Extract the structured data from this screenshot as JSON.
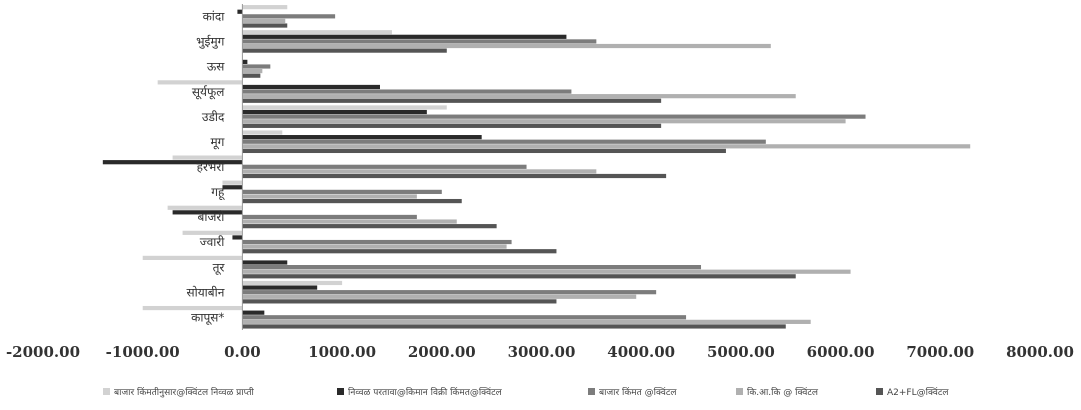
{
  "chart_data": {
    "type": "bar",
    "orientation": "horizontal",
    "categories": [
      "कापूस*",
      "सोयाबीन",
      "तूर",
      "ज्वारी",
      "बाजरी",
      "गहू",
      "हरभरा",
      "मूग",
      "उडीद",
      "सूर्यफूल",
      "ऊस",
      "भुईमुग",
      "कांदा"
    ],
    "series": [
      {
        "name": "बाजार किंमतीनुसार@क्विंटल निव्वळ प्राप्ती",
        "color": "#d2d2d2",
        "values": [
          -1000,
          1000,
          -1000,
          -600,
          -750,
          -200,
          -700,
          400,
          2050,
          -850,
          0,
          1500,
          450
        ]
      },
      {
        "name": "निव्वळ परतावा@किमान विक्री किंमत@क्विंटल",
        "color": "#2a2a2a",
        "values": [
          220,
          750,
          450,
          -100,
          -700,
          -200,
          -1400,
          2400,
          1850,
          1380,
          50,
          3250,
          -50
        ]
      },
      {
        "name": "बाजार किंमत @क्विंटल",
        "color": "#7c7c7c",
        "values": [
          4450,
          4150,
          4600,
          2700,
          1750,
          2000,
          2850,
          5250,
          6250,
          3300,
          280,
          3550,
          930
        ]
      },
      {
        "name": "कि.आ.कि @ क्विंटल",
        "color": "#b0b0b0",
        "values": [
          5700,
          3950,
          6100,
          2650,
          2150,
          1750,
          3550,
          7300,
          6050,
          5550,
          200,
          5300,
          430
        ]
      },
      {
        "name": "A2+FL@क्विंटल",
        "color": "#555555",
        "values": [
          5450,
          3150,
          5550,
          3150,
          2550,
          2200,
          4250,
          4850,
          4200,
          4200,
          180,
          2050,
          450
        ]
      }
    ],
    "xlim": [
      -2000,
      8000
    ],
    "x_ticks": [
      "-2000.00",
      "-1000.00",
      "0.00",
      "1000.00",
      "2000.00",
      "3000.00",
      "4000.00",
      "5000.00",
      "6000.00",
      "7000.00",
      "8000.00"
    ],
    "grid": false,
    "legend_position": "bottom"
  }
}
